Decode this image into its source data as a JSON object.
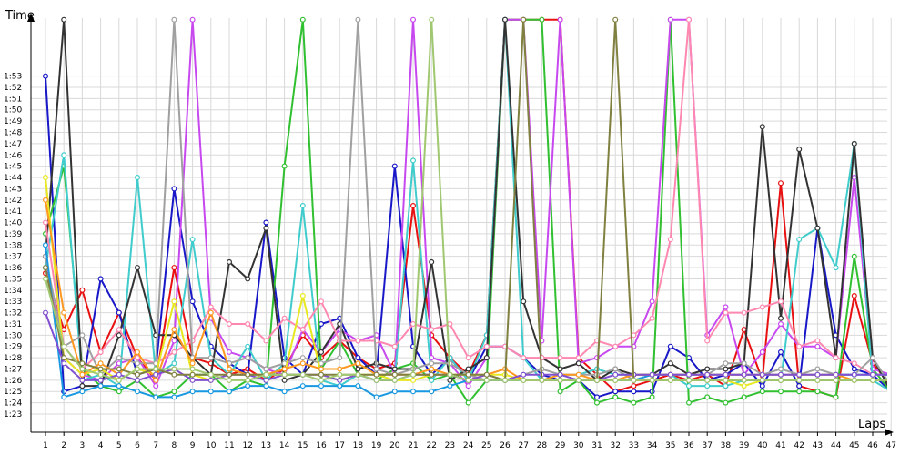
{
  "chart_data": {
    "type": "line",
    "ylabel": "Time",
    "xlabel": "Laps",
    "grid": true,
    "legend": "none",
    "x": [
      1,
      2,
      3,
      4,
      5,
      6,
      7,
      8,
      9,
      10,
      11,
      12,
      13,
      14,
      15,
      16,
      17,
      18,
      19,
      20,
      21,
      22,
      23,
      24,
      25,
      26,
      27,
      28,
      29,
      30,
      31,
      32,
      33,
      34,
      35,
      36,
      37,
      38,
      39,
      40,
      41,
      42,
      43,
      44,
      45,
      46,
      47
    ],
    "x_tick_labels": [
      "1",
      "2",
      "3",
      "4",
      "5",
      "6",
      "7",
      "8",
      "9",
      "10",
      "11",
      "12",
      "13",
      "14",
      "15",
      "16",
      "17",
      "18",
      "19",
      "20",
      "21",
      "22",
      "23",
      "24",
      "25",
      "26",
      "27",
      "28",
      "29",
      "30",
      "31",
      "32",
      "33",
      "34",
      "35",
      "36",
      "37",
      "38",
      "39",
      "40",
      "41",
      "42",
      "43",
      "44",
      "45",
      "46",
      "47"
    ],
    "y_tick_labels": [
      "1:23",
      "1:24",
      "1:25",
      "1:26",
      "1:27",
      "1:28",
      "1:29",
      "1:30",
      "1:31",
      "1:32",
      "1:33",
      "1:34",
      "1:35",
      "1:36",
      "1:37",
      "1:38",
      "1:39",
      "1:40",
      "1:41",
      "1:42",
      "1:43",
      "1:44",
      "1:45",
      "1:46",
      "1:47",
      "1:48",
      "1:49",
      "1:50",
      "1:51",
      "1:52",
      "1:53"
    ],
    "ylim_seconds": [
      82,
      116
    ],
    "series": [
      {
        "color": "#e81010",
        "values": [
          95.5,
          90.5,
          94,
          88.5,
          92,
          88,
          86,
          96,
          88,
          87.5,
          86.5,
          87,
          86,
          87,
          90,
          88,
          89.5,
          88,
          87,
          87.5,
          101.5,
          90,
          88,
          86.5,
          90,
          118,
          118,
          118,
          118,
          88,
          86.5,
          85,
          85.5,
          86,
          86.5,
          86,
          86.5,
          85.5,
          90.5,
          86,
          103.5,
          85.5,
          85,
          84.5,
          93.5,
          87.5,
          85.5
        ]
      },
      {
        "color": "#1818c8",
        "values": [
          113,
          85,
          85.5,
          95,
          92,
          86.5,
          87,
          103,
          93,
          89,
          87.5,
          86.5,
          100,
          88,
          86.5,
          91,
          91.5,
          88,
          86.5,
          105,
          89,
          86.5,
          88,
          86,
          89,
          89,
          88,
          86.5,
          86,
          86,
          84.5,
          85,
          85,
          85,
          89,
          88,
          86,
          86.5,
          87.5,
          85.5,
          88.5,
          85.5,
          99.5,
          90,
          87,
          86.5,
          85
        ]
      },
      {
        "color": "#30c030",
        "values": [
          99,
          105,
          87,
          85.5,
          85,
          86,
          84.5,
          85,
          86.5,
          86.5,
          85,
          86,
          85.5,
          105,
          118,
          87,
          89.5,
          86.5,
          86,
          87,
          87.5,
          86,
          86.5,
          84,
          86,
          118,
          118,
          118,
          85,
          86,
          84,
          84.5,
          84,
          84.5,
          118,
          84,
          84.5,
          84,
          84.5,
          85,
          85,
          85,
          85,
          84.5,
          97,
          87,
          85
        ]
      },
      {
        "color": "#c848f0",
        "values": [
          97,
          88,
          86.5,
          86,
          87.5,
          88,
          85.5,
          89.5,
          118,
          91.5,
          88.5,
          88,
          87,
          86.5,
          90.5,
          88.5,
          90.5,
          89.5,
          90,
          86.5,
          118,
          88,
          87.5,
          85.5,
          88,
          118,
          118,
          89.5,
          118,
          87.5,
          88,
          89,
          89,
          93,
          118,
          118,
          90,
          92.5,
          86.5,
          88.5,
          91,
          89,
          89,
          88,
          104,
          87,
          86.5
        ]
      },
      {
        "color": "#40cccc",
        "values": [
          96,
          106,
          86,
          86.5,
          85.5,
          104,
          86.5,
          87.5,
          98.5,
          88,
          86.5,
          89,
          86,
          87.5,
          101.5,
          86,
          85.5,
          86.5,
          86,
          86,
          105.5,
          86,
          88,
          86,
          90,
          118,
          88,
          86,
          86.5,
          86.5,
          87,
          86.5,
          86.5,
          86.5,
          86.5,
          85.5,
          85.5,
          85.5,
          86,
          86,
          86,
          98.5,
          99.5,
          96,
          107,
          86,
          85
        ]
      },
      {
        "color": "#333333",
        "values": [
          97,
          118,
          85.5,
          85.5,
          90,
          96,
          90,
          90,
          88,
          86.5,
          96.5,
          95,
          99.5,
          86,
          86.5,
          88.5,
          91,
          87,
          87.5,
          87,
          87,
          96.5,
          86,
          87,
          88,
          118,
          93,
          88,
          87,
          87.5,
          86,
          87,
          86.5,
          86.5,
          87.5,
          86.5,
          87,
          87,
          87.5,
          108.5,
          91.5,
          106.5,
          99.5,
          88,
          107,
          88,
          85
        ]
      },
      {
        "color": "#ff88b0",
        "values": [
          100,
          89,
          87,
          88.5,
          90.5,
          88,
          87.5,
          88.5,
          89.5,
          92.5,
          91,
          91,
          89.5,
          91.5,
          90.5,
          93,
          89.5,
          89.5,
          89.5,
          89,
          91,
          90.5,
          91,
          88,
          89,
          89,
          88,
          88,
          88,
          88,
          89.5,
          89,
          90,
          91.5,
          98.5,
          118,
          89.5,
          92,
          92,
          92.5,
          93,
          89,
          89.5,
          88,
          87.5,
          86.5,
          86.5
        ]
      },
      {
        "color": "#a0a0a0",
        "values": [
          97,
          89,
          90,
          86.5,
          88,
          87.5,
          87.5,
          118,
          88,
          88,
          87.5,
          88,
          87,
          87.5,
          88,
          87.5,
          88,
          118,
          87,
          86.5,
          87,
          87.5,
          87.5,
          86.5,
          86,
          86,
          86.5,
          87,
          86.5,
          86.5,
          86.5,
          87,
          86,
          86.5,
          86.5,
          86.5,
          86.5,
          87.5,
          87.5,
          86.5,
          87,
          86.5,
          87,
          86.5,
          86.5,
          88,
          85.5
        ]
      },
      {
        "color": "#e8e820",
        "values": [
          104,
          88,
          86.5,
          87,
          86,
          87,
          86.5,
          93,
          86.5,
          86,
          86.5,
          86.5,
          86.5,
          86.5,
          93.5,
          86.5,
          86,
          86.5,
          86.5,
          86,
          86,
          86.5,
          86.5,
          86.5,
          86.5,
          86.5,
          86,
          86,
          86,
          86,
          86,
          86,
          86,
          86,
          86,
          86,
          86,
          86,
          85.5,
          86,
          86,
          86,
          86,
          86,
          86,
          86,
          86
        ]
      },
      {
        "color": "#1898e0",
        "values": [
          98,
          84.5,
          85,
          85.5,
          85.5,
          85,
          84.5,
          84.5,
          85,
          85,
          85,
          85.5,
          85.5,
          85,
          85.5,
          85.5,
          85.5,
          85.5,
          84.5,
          85,
          85,
          85,
          85.5,
          86,
          86,
          86,
          86,
          86,
          86,
          86,
          86,
          86,
          86,
          86.5,
          86.5,
          86.5,
          86.5,
          86.5,
          86.5,
          86.5,
          86.5,
          86.5,
          86.5,
          86.5,
          86.5,
          86.5,
          86.5
        ]
      },
      {
        "color": "#ff9820",
        "values": [
          102,
          92,
          86.5,
          87.5,
          86.5,
          88.5,
          86,
          90.5,
          87.5,
          92,
          87,
          86.5,
          86.5,
          87,
          87.5,
          87,
          87,
          87.5,
          86.5,
          86.5,
          86.5,
          87,
          86.5,
          86,
          86.5,
          87,
          86,
          86,
          86.5,
          86.5,
          86,
          86,
          86.5,
          86.5,
          86.5,
          86.5,
          86.5,
          86.5,
          86.5,
          86.5,
          86.5,
          86.5,
          86.5,
          86.5,
          86,
          86,
          86
        ]
      },
      {
        "color": "#8050d0",
        "values": [
          92,
          87.5,
          86,
          86,
          86.5,
          86,
          86.5,
          87,
          86,
          86,
          86.5,
          86.5,
          86,
          86.5,
          86.5,
          86.5,
          86,
          86.5,
          86,
          86,
          86.5,
          86.5,
          86.5,
          86,
          86.5,
          86,
          86.5,
          86.5,
          86.5,
          86,
          86,
          86.5,
          86.5,
          86.5,
          86.5,
          86.5,
          86.5,
          86.5,
          86.5,
          86.5,
          86.5,
          86.5,
          86.5,
          86.5,
          86.5,
          86.5,
          86.5
        ]
      },
      {
        "color": "#808040",
        "values": [
          96,
          88,
          87.5,
          87,
          87,
          86.5,
          87,
          86.5,
          86.5,
          86.5,
          86.5,
          86.5,
          86.5,
          86.5,
          86.5,
          86.5,
          86.5,
          86.5,
          86.5,
          86.5,
          86.5,
          86.5,
          86.5,
          86.5,
          86.5,
          86,
          118,
          86,
          86,
          86,
          86,
          118,
          86,
          86,
          86,
          86,
          86,
          86,
          86,
          86,
          86,
          86,
          86,
          86,
          86,
          86,
          86
        ]
      },
      {
        "color": "#a0c870",
        "values": [
          95,
          89,
          87,
          86.5,
          86,
          87,
          87,
          87,
          87,
          86.5,
          86,
          86,
          86.5,
          86.5,
          86.5,
          86,
          86.5,
          86.5,
          86,
          86,
          86.5,
          118,
          86.5,
          86,
          86,
          86,
          86,
          86,
          86,
          86,
          86,
          86,
          86,
          86,
          86,
          86,
          86,
          86,
          86,
          86,
          86,
          86,
          86,
          86,
          86,
          86,
          86
        ]
      }
    ]
  }
}
